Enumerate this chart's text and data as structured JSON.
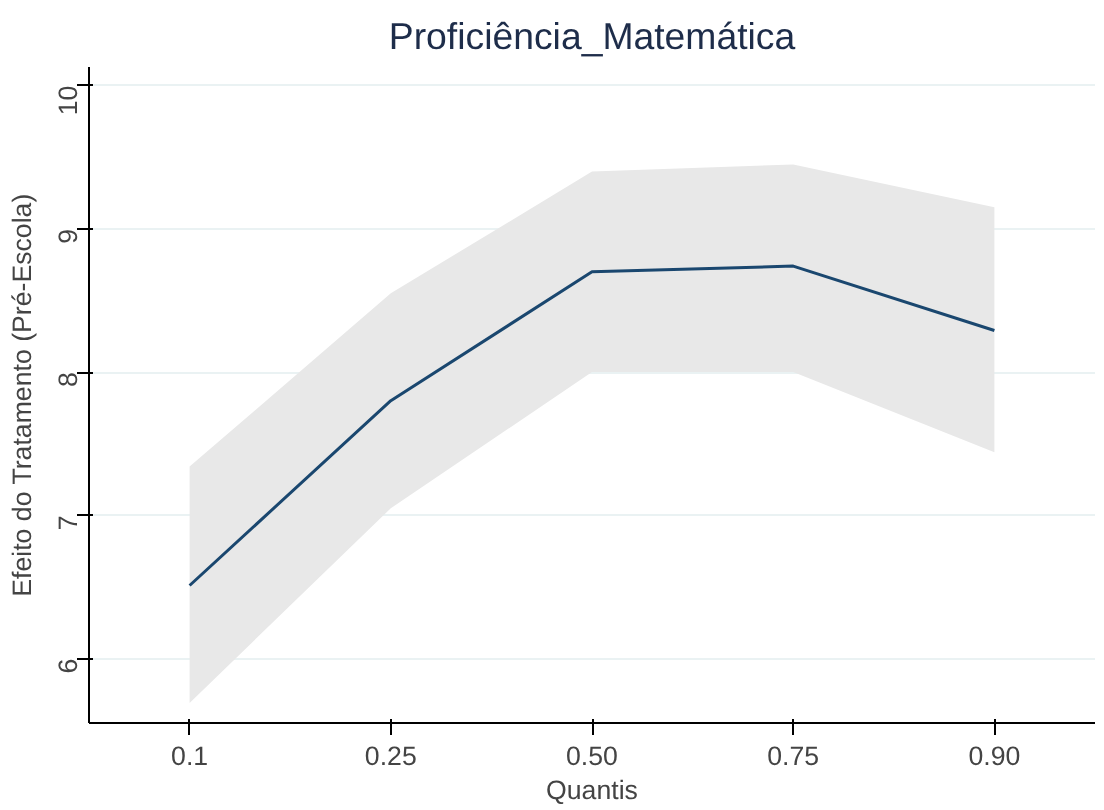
{
  "chart_data": {
    "type": "line",
    "title": "Proficiência_Matemática",
    "xlabel": "Quantis",
    "ylabel": "Efeito do Tratamento (Pré-Escola)",
    "categories": [
      "0.1",
      "0.25",
      "0.50",
      "0.75",
      "0.90"
    ],
    "series": [
      {
        "color": "#1a476f",
        "values": [
          6.51,
          7.8,
          8.7,
          8.74,
          8.29
        ],
        "lower": [
          5.69,
          7.05,
          8.0,
          8.0,
          7.44
        ],
        "upper": [
          7.34,
          8.55,
          9.4,
          9.45,
          9.15
        ]
      }
    ],
    "ylim": [
      5.55,
      10.13
    ],
    "yticks": [
      6,
      7,
      8,
      9,
      10
    ],
    "grid": "y"
  }
}
